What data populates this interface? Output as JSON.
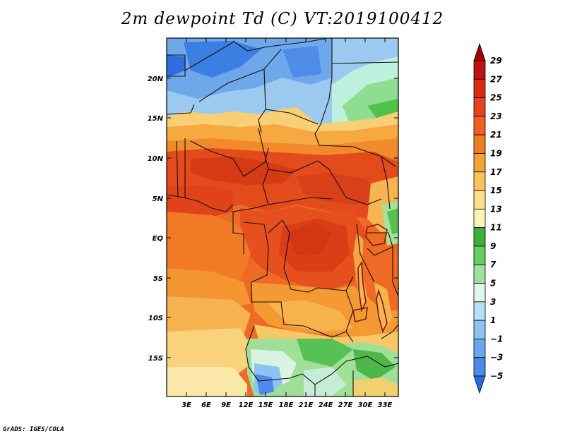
{
  "title": "2m dewpoint Td (C) VT:2019100412",
  "credit": "GrADS: IGES/COLA",
  "map": {
    "projection": "latlon",
    "lat_ticks": [
      "20N",
      "15N",
      "10N",
      "5N",
      "EQ",
      "5S",
      "10S",
      "15S"
    ],
    "lon_ticks": [
      "3E",
      "6E",
      "9E",
      "12E",
      "15E",
      "18E",
      "21E",
      "24E",
      "27E",
      "30E",
      "33E"
    ]
  },
  "colorbar": {
    "labels": [
      "29",
      "27",
      "25",
      "23",
      "21",
      "19",
      "17",
      "15",
      "13",
      "11",
      "9",
      "7",
      "5",
      "3",
      "1",
      "-1",
      "-3",
      "-5"
    ],
    "colors": [
      "#a00000",
      "#c01212",
      "#db2a14",
      "#e8441a",
      "#f06020",
      "#f27d1f",
      "#f5a13a",
      "#f8c25c",
      "#fbe08c",
      "#fcf3b8",
      "#3bb33b",
      "#68cc60",
      "#9ee19a",
      "#dff6e9",
      "#b6e0f8",
      "#8ec2f2",
      "#6aa7ec",
      "#4b8ae6",
      "#2a6ae0"
    ]
  }
}
